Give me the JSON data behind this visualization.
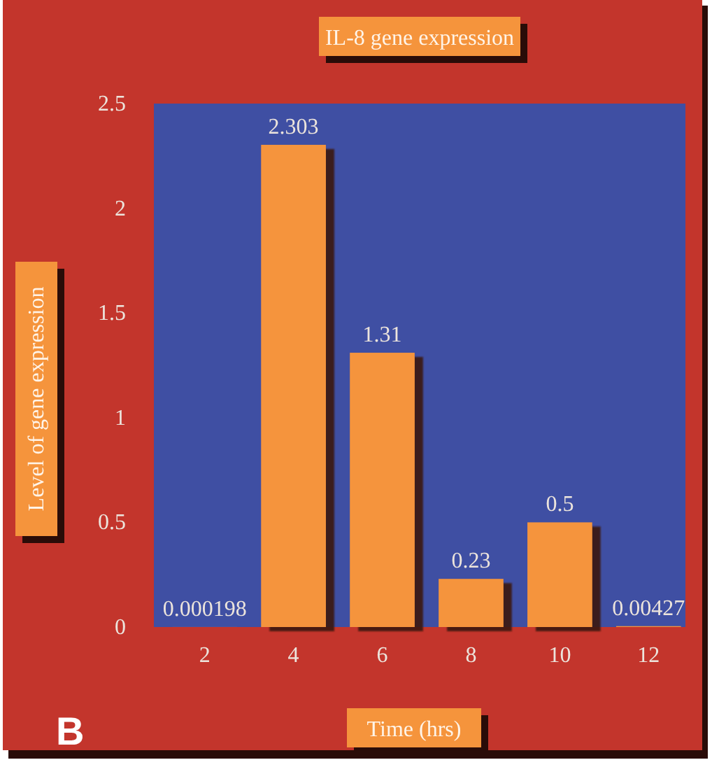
{
  "chart_data": {
    "type": "bar",
    "title": "IL-8 gene expression",
    "xlabel": "Time (hrs)",
    "ylabel": "Level of gene expression",
    "annotations": [
      "B"
    ],
    "categories": [
      "2",
      "4",
      "6",
      "8",
      "10",
      "12"
    ],
    "values": [
      0.000198,
      2.303,
      1.31,
      0.23,
      0.5,
      0.00427
    ],
    "color": "#f5943c",
    "data_labels": true,
    "ylim": [
      0,
      2.5
    ],
    "yticks": [
      0,
      0.5,
      1,
      1.5,
      2,
      2.5
    ],
    "grid": false
  }
}
